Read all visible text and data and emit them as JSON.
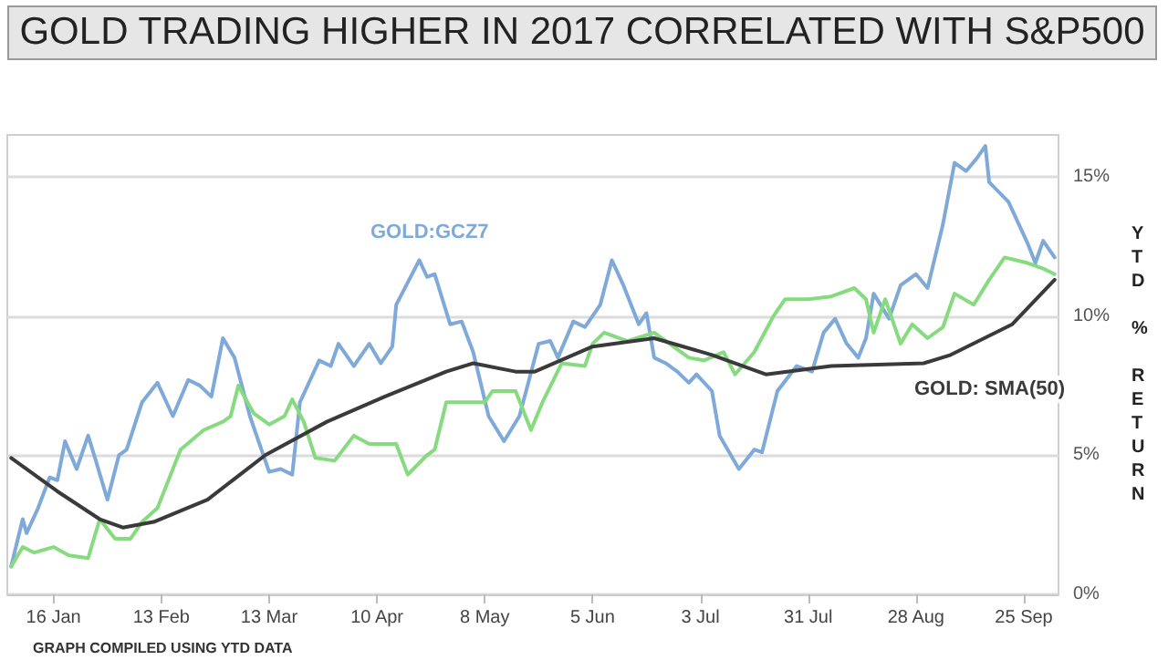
{
  "chart_data": {
    "type": "line",
    "title": "GOLD TRADING HIGHER IN 2017 CORRELATED WITH S&P500",
    "ylabel": "YTD % RETURN",
    "annotations": [
      "GRAPH COMPILED USING YTD DATA"
    ],
    "xlim": [
      "2017-01-04",
      "2017-10-04"
    ],
    "xticks": [
      {
        "value": "2017-01-16",
        "label": "16 Jan"
      },
      {
        "value": "2017-02-13",
        "label": "13 Feb"
      },
      {
        "value": "2017-03-13",
        "label": "13 Mar"
      },
      {
        "value": "2017-04-10",
        "label": "10 Apr"
      },
      {
        "value": "2017-05-08",
        "label": "8 May"
      },
      {
        "value": "2017-06-05",
        "label": "5 Jun"
      },
      {
        "value": "2017-07-03",
        "label": "3 Jul"
      },
      {
        "value": "2017-07-31",
        "label": "31 Jul"
      },
      {
        "value": "2017-08-28",
        "label": "28 Aug"
      },
      {
        "value": "2017-09-25",
        "label": "25 Sep"
      }
    ],
    "ylim": [
      0,
      16.5
    ],
    "yticks": [
      {
        "value": 0,
        "label": "0%"
      },
      {
        "value": 5,
        "label": "5%"
      },
      {
        "value": 10,
        "label": "10%"
      },
      {
        "value": 15,
        "label": "15%"
      }
    ],
    "grid": "y",
    "legend": false,
    "marker": "none",
    "line_style": "solid",
    "series": [
      {
        "name": "GOLD:GCZ7",
        "color": "#7fa9d8",
        "x": [
          "2017-01-05",
          "2017-01-08",
          "2017-01-09",
          "2017-01-12",
          "2017-01-15",
          "2017-01-17",
          "2017-01-19",
          "2017-01-22",
          "2017-01-25",
          "2017-01-27",
          "2017-01-30",
          "2017-02-02",
          "2017-02-04",
          "2017-02-08",
          "2017-02-12",
          "2017-02-16",
          "2017-02-20",
          "2017-02-23",
          "2017-02-26",
          "2017-03-01",
          "2017-03-04",
          "2017-03-08",
          "2017-03-13",
          "2017-03-16",
          "2017-03-19",
          "2017-03-21",
          "2017-03-26",
          "2017-03-29",
          "2017-03-31",
          "2017-04-04",
          "2017-04-08",
          "2017-04-11",
          "2017-04-14",
          "2017-04-15",
          "2017-04-21",
          "2017-04-23",
          "2017-04-25",
          "2017-04-29",
          "2017-05-02",
          "2017-05-05",
          "2017-05-09",
          "2017-05-13",
          "2017-05-17",
          "2017-05-22",
          "2017-05-25",
          "2017-05-27",
          "2017-05-31",
          "2017-06-03",
          "2017-06-07",
          "2017-06-10",
          "2017-06-13",
          "2017-06-17",
          "2017-06-19",
          "2017-06-21",
          "2017-06-24",
          "2017-06-27",
          "2017-06-30",
          "2017-07-02",
          "2017-07-06",
          "2017-07-08",
          "2017-07-13",
          "2017-07-17",
          "2017-07-19",
          "2017-07-23",
          "2017-07-28",
          "2017-08-01",
          "2017-08-04",
          "2017-08-07",
          "2017-08-10",
          "2017-08-13",
          "2017-08-15",
          "2017-08-17",
          "2017-08-21",
          "2017-08-24",
          "2017-08-28",
          "2017-08-31",
          "2017-09-04",
          "2017-09-07",
          "2017-09-10",
          "2017-09-13",
          "2017-09-15",
          "2017-09-16",
          "2017-09-21",
          "2017-09-26",
          "2017-09-28",
          "2017-09-30",
          "2017-10-03"
        ],
        "values": [
          1.0,
          2.7,
          2.2,
          3.1,
          4.2,
          4.1,
          5.5,
          4.5,
          5.7,
          4.8,
          3.4,
          5.0,
          5.2,
          6.9,
          7.6,
          6.4,
          7.7,
          7.5,
          7.1,
          9.2,
          8.5,
          6.4,
          4.4,
          4.5,
          4.3,
          6.9,
          8.4,
          8.2,
          9.0,
          8.2,
          9.0,
          8.3,
          8.9,
          10.4,
          12.0,
          11.4,
          11.5,
          9.7,
          9.8,
          8.7,
          6.4,
          5.5,
          6.4,
          9.0,
          9.1,
          8.5,
          9.8,
          9.6,
          10.4,
          12.0,
          11.1,
          9.7,
          10.1,
          8.5,
          8.3,
          8.0,
          7.6,
          7.9,
          7.3,
          5.7,
          4.5,
          5.2,
          5.1,
          7.3,
          8.2,
          8.0,
          9.4,
          9.9,
          9.0,
          8.5,
          9.2,
          10.8,
          9.9,
          11.1,
          11.5,
          11.0,
          13.3,
          15.5,
          15.2,
          15.7,
          16.1,
          14.8,
          14.1,
          12.6,
          11.9,
          12.7,
          12.1
        ]
      },
      {
        "color": "#86db7e",
        "x": [
          "2017-01-05",
          "2017-01-08",
          "2017-01-11",
          "2017-01-16",
          "2017-01-20",
          "2017-01-25",
          "2017-01-28",
          "2017-02-01",
          "2017-02-05",
          "2017-02-08",
          "2017-02-12",
          "2017-02-18",
          "2017-02-24",
          "2017-03-01",
          "2017-03-03",
          "2017-03-05",
          "2017-03-09",
          "2017-03-13",
          "2017-03-17",
          "2017-03-19",
          "2017-03-22",
          "2017-03-25",
          "2017-03-30",
          "2017-04-04",
          "2017-04-08",
          "2017-04-15",
          "2017-04-18",
          "2017-04-23",
          "2017-04-25",
          "2017-04-28",
          "2017-05-03",
          "2017-05-08",
          "2017-05-10",
          "2017-05-16",
          "2017-05-20",
          "2017-05-23",
          "2017-05-28",
          "2017-06-03",
          "2017-06-05",
          "2017-06-08",
          "2017-06-14",
          "2017-06-21",
          "2017-06-25",
          "2017-06-30",
          "2017-07-04",
          "2017-07-09",
          "2017-07-12",
          "2017-07-17",
          "2017-07-22",
          "2017-07-25",
          "2017-07-31",
          "2017-08-06",
          "2017-08-12",
          "2017-08-15",
          "2017-08-17",
          "2017-08-20",
          "2017-08-24",
          "2017-08-27",
          "2017-08-31",
          "2017-09-04",
          "2017-09-07",
          "2017-09-12",
          "2017-09-16",
          "2017-09-20",
          "2017-09-26",
          "2017-09-30",
          "2017-10-03"
        ],
        "values": [
          1.0,
          1.7,
          1.5,
          1.7,
          1.4,
          1.3,
          2.7,
          2.0,
          2.0,
          2.6,
          3.1,
          5.2,
          5.9,
          6.2,
          6.4,
          7.5,
          6.5,
          6.1,
          6.4,
          7.0,
          6.2,
          4.9,
          4.8,
          5.7,
          5.4,
          5.4,
          4.3,
          5.0,
          5.2,
          6.9,
          6.9,
          6.9,
          7.3,
          7.3,
          5.9,
          6.9,
          8.3,
          8.2,
          9.0,
          9.4,
          9.1,
          9.4,
          9.0,
          8.5,
          8.4,
          8.7,
          7.9,
          8.7,
          10.0,
          10.6,
          10.6,
          10.7,
          11.0,
          10.6,
          9.4,
          10.6,
          9.0,
          9.7,
          9.2,
          9.6,
          10.8,
          10.4,
          11.3,
          12.1,
          11.9,
          11.7,
          11.5
        ]
      },
      {
        "name": "GOLD: SMA(50)",
        "color": "#3a3a3a",
        "x": [
          "2017-01-05",
          "2017-01-17",
          "2017-01-28",
          "2017-02-03",
          "2017-02-11",
          "2017-02-25",
          "2017-03-12",
          "2017-03-28",
          "2017-04-12",
          "2017-04-28",
          "2017-05-05",
          "2017-05-16",
          "2017-05-21",
          "2017-06-05",
          "2017-06-21",
          "2017-07-06",
          "2017-07-20",
          "2017-08-06",
          "2017-08-30",
          "2017-09-06",
          "2017-09-22",
          "2017-10-03"
        ],
        "values": [
          4.9,
          3.7,
          2.7,
          2.4,
          2.6,
          3.4,
          5.0,
          6.2,
          7.1,
          8.0,
          8.3,
          8.0,
          8.0,
          8.9,
          9.2,
          8.6,
          7.9,
          8.2,
          8.3,
          8.6,
          9.7,
          11.3
        ]
      }
    ]
  }
}
